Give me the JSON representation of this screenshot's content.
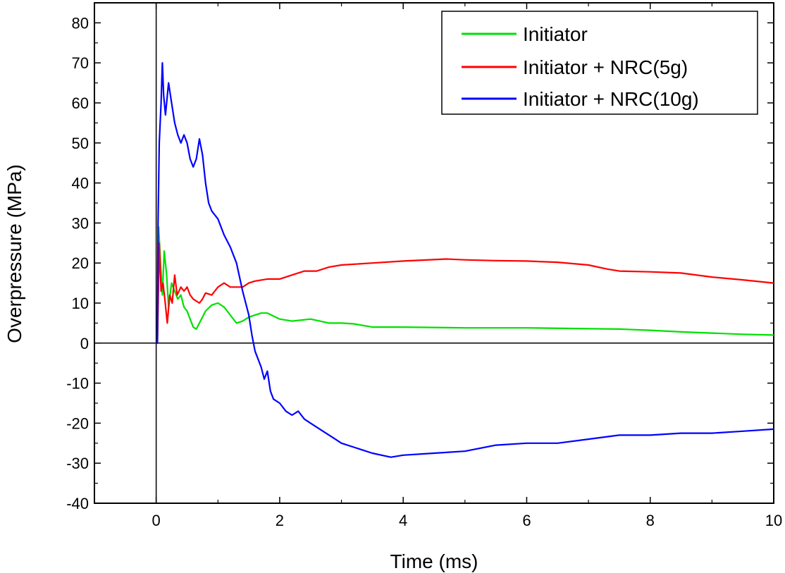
{
  "chart_data": {
    "type": "line",
    "xlabel": "Time (ms)",
    "ylabel": "Overpressure (MPa)",
    "xlim": [
      -1,
      10
    ],
    "ylim": [
      -40,
      85
    ],
    "xticks": [
      0,
      2,
      4,
      6,
      8,
      10
    ],
    "yticks": [
      -40,
      -30,
      -20,
      -10,
      0,
      10,
      20,
      30,
      40,
      50,
      60,
      70,
      80
    ],
    "grid": false,
    "zero_lines": true,
    "legend_position": "top-right",
    "series": [
      {
        "name": "Initiator",
        "color": "#00e000",
        "points": [
          [
            0,
            0
          ],
          [
            0.02,
            0
          ],
          [
            0.04,
            29
          ],
          [
            0.07,
            20
          ],
          [
            0.1,
            12
          ],
          [
            0.13,
            23
          ],
          [
            0.17,
            17
          ],
          [
            0.2,
            9
          ],
          [
            0.25,
            15
          ],
          [
            0.3,
            13
          ],
          [
            0.35,
            11
          ],
          [
            0.4,
            12
          ],
          [
            0.45,
            9
          ],
          [
            0.5,
            8
          ],
          [
            0.55,
            6
          ],
          [
            0.6,
            4
          ],
          [
            0.65,
            3.5
          ],
          [
            0.7,
            5
          ],
          [
            0.8,
            8
          ],
          [
            0.9,
            9.5
          ],
          [
            1.0,
            10
          ],
          [
            1.1,
            9
          ],
          [
            1.2,
            7
          ],
          [
            1.3,
            5
          ],
          [
            1.4,
            5.5
          ],
          [
            1.5,
            6.5
          ],
          [
            1.7,
            7.5
          ],
          [
            1.8,
            7.5
          ],
          [
            2.0,
            6
          ],
          [
            2.2,
            5.5
          ],
          [
            2.5,
            6
          ],
          [
            2.8,
            5
          ],
          [
            3.0,
            5
          ],
          [
            3.2,
            4.8
          ],
          [
            3.5,
            4
          ],
          [
            4.0,
            4
          ],
          [
            5.0,
            3.8
          ],
          [
            6.0,
            3.8
          ],
          [
            7.0,
            3.6
          ],
          [
            7.5,
            3.5
          ],
          [
            8.0,
            3.2
          ],
          [
            8.5,
            2.8
          ],
          [
            9.0,
            2.5
          ],
          [
            9.5,
            2.2
          ],
          [
            10.0,
            2
          ]
        ]
      },
      {
        "name": "Initiator + NRC(5g)",
        "color": "#ff0000",
        "points": [
          [
            0,
            0
          ],
          [
            0.02,
            0
          ],
          [
            0.05,
            25
          ],
          [
            0.08,
            13
          ],
          [
            0.11,
            15
          ],
          [
            0.14,
            11
          ],
          [
            0.18,
            5
          ],
          [
            0.22,
            12
          ],
          [
            0.26,
            10
          ],
          [
            0.3,
            17
          ],
          [
            0.34,
            12
          ],
          [
            0.4,
            14
          ],
          [
            0.45,
            13
          ],
          [
            0.5,
            14
          ],
          [
            0.55,
            12
          ],
          [
            0.6,
            11
          ],
          [
            0.7,
            10
          ],
          [
            0.75,
            11
          ],
          [
            0.8,
            12.5
          ],
          [
            0.9,
            12
          ],
          [
            1.0,
            14
          ],
          [
            1.1,
            15
          ],
          [
            1.2,
            14
          ],
          [
            1.3,
            14
          ],
          [
            1.4,
            14
          ],
          [
            1.5,
            15
          ],
          [
            1.6,
            15.5
          ],
          [
            1.8,
            16
          ],
          [
            2.0,
            16
          ],
          [
            2.2,
            17
          ],
          [
            2.4,
            18
          ],
          [
            2.6,
            18
          ],
          [
            2.8,
            19
          ],
          [
            3.0,
            19.5
          ],
          [
            3.5,
            20
          ],
          [
            4.0,
            20.5
          ],
          [
            4.7,
            21
          ],
          [
            5.0,
            20.8
          ],
          [
            5.5,
            20.6
          ],
          [
            6.0,
            20.5
          ],
          [
            6.5,
            20.2
          ],
          [
            7.0,
            19.5
          ],
          [
            7.3,
            18.5
          ],
          [
            7.5,
            18
          ],
          [
            8.0,
            17.8
          ],
          [
            8.5,
            17.5
          ],
          [
            9.0,
            16.5
          ],
          [
            9.5,
            15.8
          ],
          [
            10.0,
            15
          ]
        ]
      },
      {
        "name": "Initiator + NRC(10g)",
        "color": "#0000ff",
        "points": [
          [
            0,
            0
          ],
          [
            0.02,
            0
          ],
          [
            0.03,
            30
          ],
          [
            0.05,
            50
          ],
          [
            0.08,
            60
          ],
          [
            0.1,
            70
          ],
          [
            0.12,
            62
          ],
          [
            0.15,
            57
          ],
          [
            0.2,
            65
          ],
          [
            0.25,
            60
          ],
          [
            0.3,
            55
          ],
          [
            0.35,
            52
          ],
          [
            0.4,
            50
          ],
          [
            0.45,
            52
          ],
          [
            0.5,
            50
          ],
          [
            0.55,
            46
          ],
          [
            0.6,
            44
          ],
          [
            0.65,
            46
          ],
          [
            0.7,
            51
          ],
          [
            0.75,
            47
          ],
          [
            0.8,
            40
          ],
          [
            0.85,
            35
          ],
          [
            0.9,
            33
          ],
          [
            1.0,
            31
          ],
          [
            1.1,
            27
          ],
          [
            1.2,
            24
          ],
          [
            1.3,
            20
          ],
          [
            1.4,
            13
          ],
          [
            1.5,
            7
          ],
          [
            1.55,
            2
          ],
          [
            1.6,
            -2
          ],
          [
            1.7,
            -6
          ],
          [
            1.75,
            -9
          ],
          [
            1.8,
            -7
          ],
          [
            1.85,
            -12
          ],
          [
            1.9,
            -14
          ],
          [
            2.0,
            -15
          ],
          [
            2.1,
            -17
          ],
          [
            2.2,
            -18
          ],
          [
            2.3,
            -17
          ],
          [
            2.4,
            -19
          ],
          [
            2.5,
            -20
          ],
          [
            2.7,
            -22
          ],
          [
            2.9,
            -24
          ],
          [
            3.0,
            -25
          ],
          [
            3.2,
            -26
          ],
          [
            3.5,
            -27.5
          ],
          [
            3.8,
            -28.5
          ],
          [
            4.0,
            -28
          ],
          [
            4.5,
            -27.5
          ],
          [
            5.0,
            -27
          ],
          [
            5.5,
            -25.5
          ],
          [
            6.0,
            -25
          ],
          [
            6.5,
            -25
          ],
          [
            7.0,
            -24
          ],
          [
            7.5,
            -23
          ],
          [
            8.0,
            -23
          ],
          [
            8.5,
            -22.5
          ],
          [
            9.0,
            -22.5
          ],
          [
            9.5,
            -22
          ],
          [
            10.0,
            -21.5
          ]
        ]
      }
    ]
  }
}
